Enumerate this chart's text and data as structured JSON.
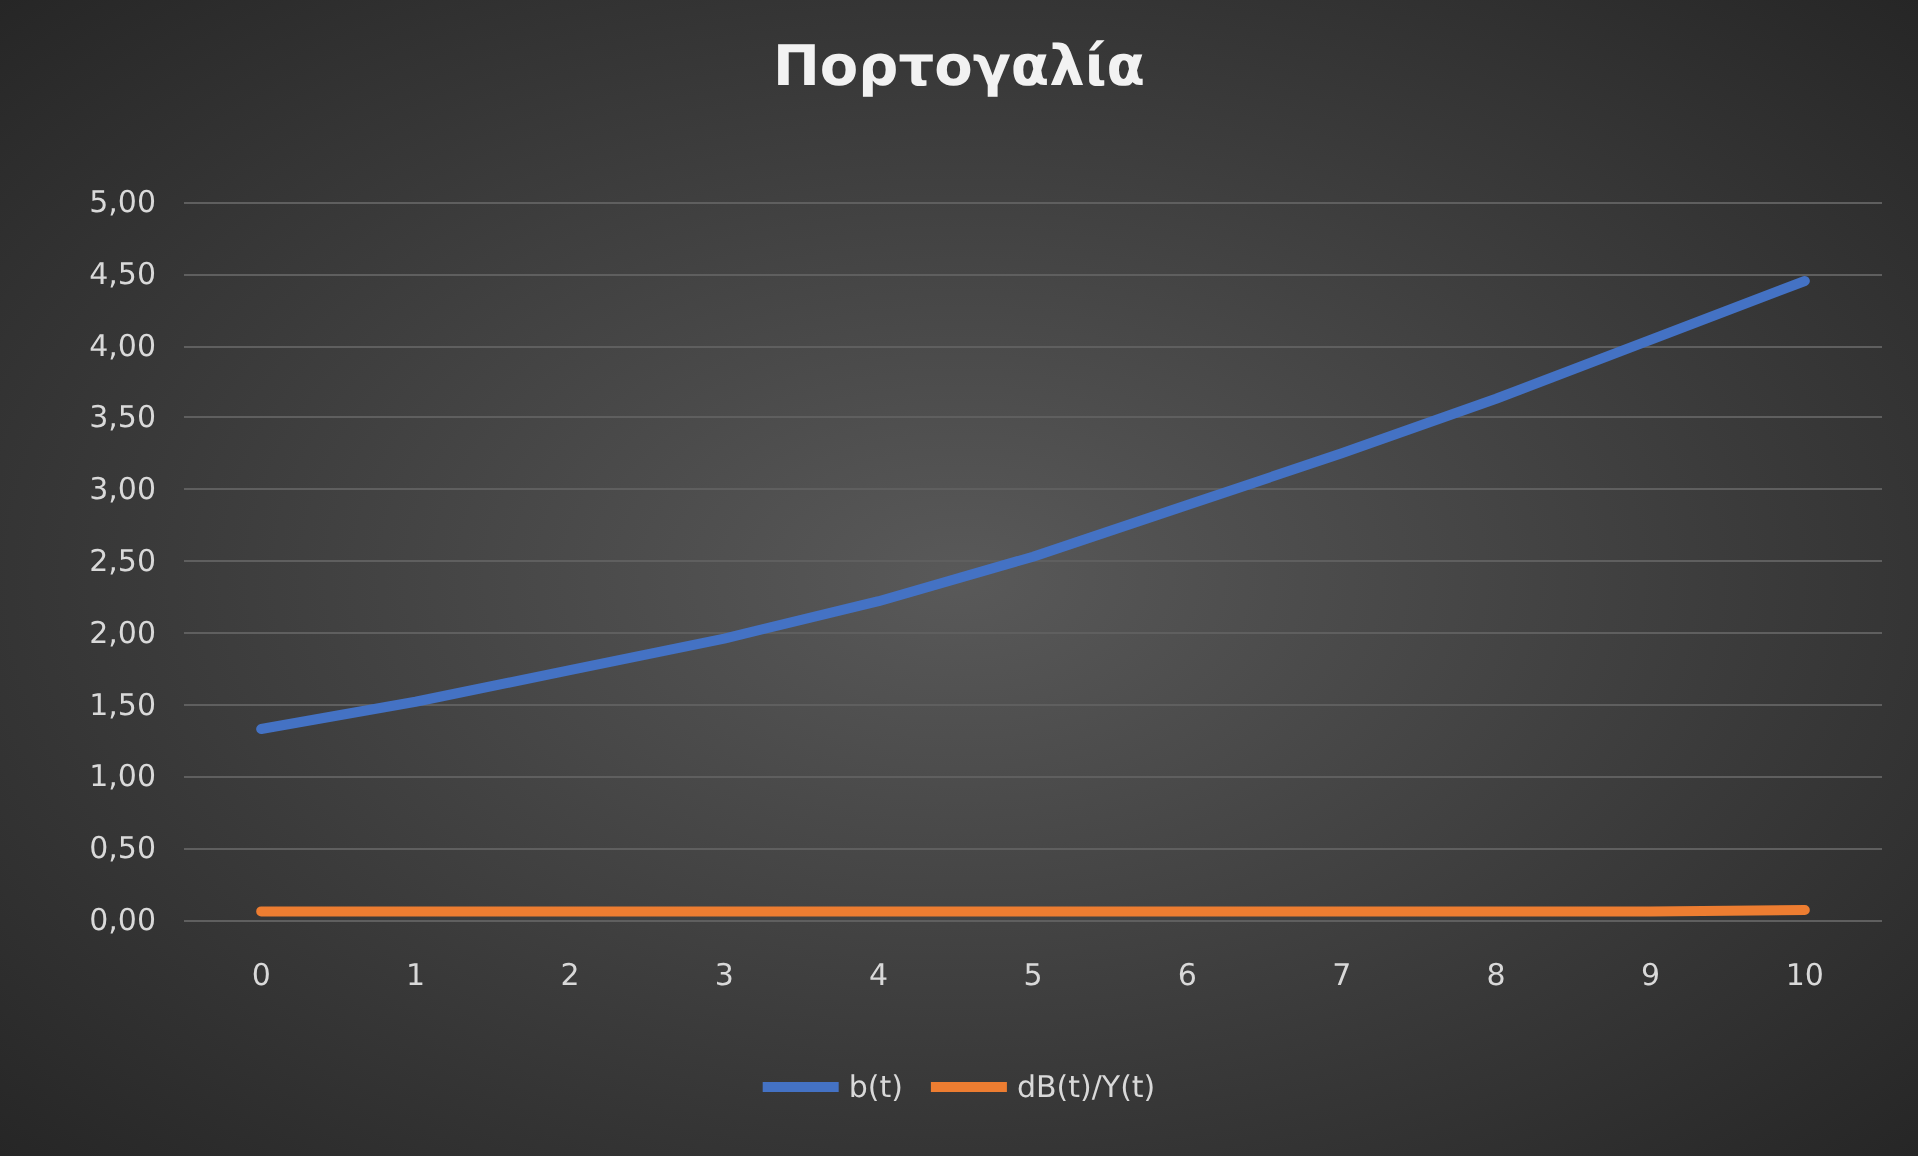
{
  "chart_data": {
    "type": "line",
    "title": "Πορτογαλία",
    "categories": [
      "0",
      "1",
      "2",
      "3",
      "4",
      "5",
      "6",
      "7",
      "8",
      "9",
      "10"
    ],
    "series": [
      {
        "name": "b(t)",
        "color": "#4472c4",
        "values": [
          1.33,
          1.52,
          1.74,
          1.96,
          2.22,
          2.53,
          2.89,
          3.25,
          3.63,
          4.04,
          4.45
        ]
      },
      {
        "name": "dB(t)/Y(t)",
        "color": "#ed7d31",
        "values": [
          0.06,
          0.06,
          0.06,
          0.06,
          0.06,
          0.06,
          0.06,
          0.06,
          0.06,
          0.06,
          0.07
        ]
      }
    ],
    "ylim": [
      0,
      5
    ],
    "yticks": [
      {
        "value": 0,
        "label": "0,00"
      },
      {
        "value": 0.5,
        "label": "0,50"
      },
      {
        "value": 1,
        "label": "1,00"
      },
      {
        "value": 1.5,
        "label": "1,50"
      },
      {
        "value": 2,
        "label": "2,00"
      },
      {
        "value": 2.5,
        "label": "2,50"
      },
      {
        "value": 3,
        "label": "3,00"
      },
      {
        "value": 3.5,
        "label": "3,50"
      },
      {
        "value": 4,
        "label": "4,00"
      },
      {
        "value": 4.5,
        "label": "4,50"
      },
      {
        "value": 5,
        "label": "5,00"
      }
    ],
    "grid": "y",
    "legend": "bottom",
    "marker": "none",
    "line_style": "solid"
  }
}
